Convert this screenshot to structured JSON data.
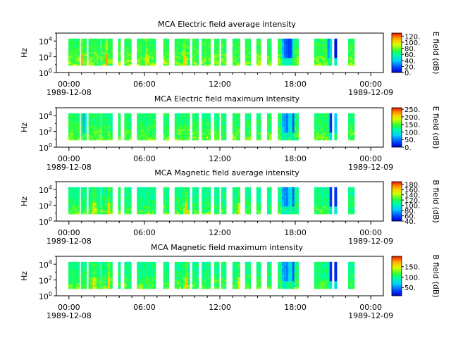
{
  "chart_data": [
    {
      "type": "heatmap",
      "title": "MCA  Electric field average intensity",
      "ylabel": "Hz",
      "yscale": "log",
      "ylim": [
        1,
        100000
      ],
      "y_ticks": [
        {
          "pow": 0,
          "label": "10",
          "sup": "0"
        },
        {
          "pow": 2,
          "label": "10",
          "sup": "2"
        },
        {
          "pow": 4,
          "label": "10",
          "sup": "4"
        }
      ],
      "x_ticks": [
        {
          "h": 0,
          "label": "00:00",
          "date": "1989-12-08"
        },
        {
          "h": 6,
          "label": "06:00"
        },
        {
          "h": 12,
          "label": "12:00"
        },
        {
          "h": 18,
          "label": "18:00"
        },
        {
          "h": 24,
          "label": "00:00",
          "date": "1989-12-09"
        }
      ],
      "xlim_hours": [
        -1.0,
        25.0
      ],
      "colorbar": {
        "label": "E field (dB)",
        "range": [
          0,
          130
        ],
        "ticks": [
          "0.",
          "20.",
          "40.",
          "60.",
          "80.",
          "100.",
          "120."
        ],
        "tick_values": [
          0,
          20,
          40,
          60,
          80,
          100,
          120
        ]
      },
      "baseline_db": 68,
      "events": [
        {
          "h": 17.1,
          "db": 5
        },
        {
          "h": 17.3,
          "db": 5
        },
        {
          "h": 17.5,
          "db": 12
        },
        {
          "h": 17.7,
          "db": 10
        },
        {
          "h": 20.7,
          "db": 8
        },
        {
          "h": 21.2,
          "db": 5
        },
        {
          "h": 1.0,
          "db": 115
        },
        {
          "h": 3.0,
          "db": 112
        },
        {
          "h": 6.2,
          "db": 105
        },
        {
          "h": 9.2,
          "db": 110
        },
        {
          "h": 15.3,
          "db": 105
        }
      ]
    },
    {
      "type": "heatmap",
      "title": "MCA  Electric field maximum intensity",
      "ylabel": "Hz",
      "yscale": "log",
      "ylim": [
        1,
        100000
      ],
      "y_ticks": [
        {
          "pow": 0,
          "label": "10",
          "sup": "0"
        },
        {
          "pow": 2,
          "label": "10",
          "sup": "2"
        },
        {
          "pow": 4,
          "label": "10",
          "sup": "4"
        }
      ],
      "x_ticks": [
        {
          "h": 0,
          "label": "00:00",
          "date": "1989-12-08"
        },
        {
          "h": 6,
          "label": "06:00"
        },
        {
          "h": 12,
          "label": "12:00"
        },
        {
          "h": 18,
          "label": "18:00"
        },
        {
          "h": 24,
          "label": "00:00",
          "date": "1989-12-09"
        }
      ],
      "xlim_hours": [
        -1.0,
        25.0
      ],
      "colorbar": {
        "label": "E field (dB)",
        "range": [
          0,
          260
        ],
        "ticks": [
          "0.",
          "50.",
          "100.",
          "150.",
          "200.",
          "250."
        ],
        "tick_values": [
          0,
          50,
          100,
          150,
          200,
          250
        ]
      },
      "baseline_db": 130,
      "events": [
        {
          "h": 17.1,
          "db": 15
        },
        {
          "h": 17.4,
          "db": 10
        },
        {
          "h": 17.8,
          "db": 20
        },
        {
          "h": 20.8,
          "db": 15
        },
        {
          "h": 21.1,
          "db": 10
        },
        {
          "h": 1.2,
          "db": 60
        },
        {
          "h": 3.5,
          "db": 70
        },
        {
          "h": 15.5,
          "db": 60
        }
      ]
    },
    {
      "type": "heatmap",
      "title": "MCA  Magnetic field average intensity",
      "ylabel": "Hz",
      "yscale": "log",
      "ylim": [
        1,
        100000
      ],
      "y_ticks": [
        {
          "pow": 0,
          "label": "10",
          "sup": "0"
        },
        {
          "pow": 2,
          "label": "10",
          "sup": "2"
        },
        {
          "pow": 4,
          "label": "10",
          "sup": "4"
        }
      ],
      "x_ticks": [
        {
          "h": 0,
          "label": "00:00",
          "date": "1989-12-08"
        },
        {
          "h": 6,
          "label": "06:00"
        },
        {
          "h": 12,
          "label": "12:00"
        },
        {
          "h": 18,
          "label": "18:00"
        },
        {
          "h": 24,
          "label": "00:00",
          "date": "1989-12-09"
        }
      ],
      "xlim_hours": [
        -1.0,
        25.0
      ],
      "colorbar": {
        "label": "B field (dB)",
        "range": [
          40,
          190
        ],
        "ticks": [
          "40.",
          "60.",
          "80.",
          "100.",
          "120.",
          "140.",
          "160.",
          "180."
        ],
        "tick_values": [
          40,
          60,
          80,
          100,
          120,
          140,
          160,
          180
        ]
      },
      "baseline_db": 110,
      "events": [
        {
          "h": 17.1,
          "db": 45
        },
        {
          "h": 17.4,
          "db": 50
        },
        {
          "h": 17.8,
          "db": 55
        },
        {
          "h": 20.8,
          "db": 50
        },
        {
          "h": 21.2,
          "db": 55
        },
        {
          "h": 2.0,
          "db": 170
        },
        {
          "h": 3.2,
          "db": 165
        },
        {
          "h": 9.3,
          "db": 175
        },
        {
          "h": 13.6,
          "db": 165
        }
      ]
    },
    {
      "type": "heatmap",
      "title": "MCA  Magnetic field maximum intensity",
      "ylabel": "Hz",
      "yscale": "log",
      "ylim": [
        1,
        100000
      ],
      "y_ticks": [
        {
          "pow": 0,
          "label": "10",
          "sup": "0"
        },
        {
          "pow": 2,
          "label": "10",
          "sup": "2"
        },
        {
          "pow": 4,
          "label": "10",
          "sup": "4"
        }
      ],
      "x_ticks": [
        {
          "h": 0,
          "label": "00:00",
          "date": "1989-12-08"
        },
        {
          "h": 6,
          "label": "06:00"
        },
        {
          "h": 12,
          "label": "12:00"
        },
        {
          "h": 18,
          "label": "18:00"
        },
        {
          "h": 24,
          "label": "00:00",
          "date": "1989-12-09"
        }
      ],
      "xlim_hours": [
        -1.0,
        25.0
      ],
      "colorbar": {
        "label": "B field (dB)",
        "range": [
          10,
          200
        ],
        "ticks": [
          "50.",
          "100.",
          "150."
        ],
        "tick_values": [
          50,
          100,
          150
        ]
      },
      "baseline_db": 100,
      "events": [
        {
          "h": 17.1,
          "db": 20
        },
        {
          "h": 17.4,
          "db": 25
        },
        {
          "h": 17.8,
          "db": 25
        },
        {
          "h": 20.8,
          "db": 20
        },
        {
          "h": 21.2,
          "db": 25
        },
        {
          "h": 2.0,
          "db": 175
        },
        {
          "h": 3.2,
          "db": 170
        },
        {
          "h": 9.3,
          "db": 180
        },
        {
          "h": 13.6,
          "db": 170
        }
      ]
    }
  ],
  "data_intervals_hours": [
    [
      -0.05,
      0.85
    ],
    [
      0.95,
      1.4
    ],
    [
      1.55,
      2.5
    ],
    [
      2.55,
      3.45
    ],
    [
      3.9,
      4.1
    ],
    [
      4.4,
      4.95
    ],
    [
      5.4,
      6.9
    ],
    [
      7.5,
      7.95
    ],
    [
      8.4,
      9.6
    ],
    [
      9.8,
      10.3
    ],
    [
      10.55,
      11.25
    ],
    [
      11.55,
      11.95
    ],
    [
      12.1,
      12.5
    ],
    [
      13.0,
      13.6
    ],
    [
      14.0,
      14.45
    ],
    [
      14.9,
      15.25
    ],
    [
      15.75,
      16.1
    ],
    [
      16.6,
      18.25
    ],
    [
      19.5,
      20.9
    ],
    [
      21.1,
      21.3
    ],
    [
      22.2,
      22.7
    ]
  ]
}
